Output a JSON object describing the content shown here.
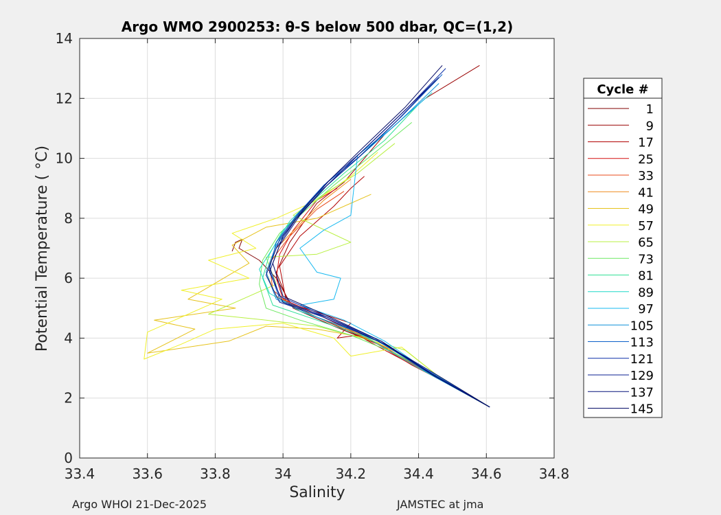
{
  "footer": {
    "left": "Argo WHOI 21-Dec-2025",
    "right": "JAMSTEC at jma"
  },
  "colors": {
    "background": "#f0f0f0",
    "axes_background": "#ffffff",
    "grid": "#dddddd",
    "axis": "#262626"
  },
  "chart_data": {
    "type": "line",
    "title": "Argo WMO 2900253: θ-S below 500 dbar,  QC=(1,2)",
    "xlabel": "Salinity",
    "ylabel": "Potential Temperature ( °C)",
    "xlim": [
      33.4,
      34.8
    ],
    "ylim": [
      0,
      14
    ],
    "xticks": [
      "33.4",
      "33.6",
      "33.8",
      "34",
      "34.2",
      "34.4",
      "34.6",
      "34.8"
    ],
    "yticks": [
      "0",
      "2",
      "4",
      "6",
      "8",
      "10",
      "12",
      "14"
    ],
    "grid": true,
    "legend": {
      "title": "Cycle #",
      "placement": "right-outside",
      "entries": [
        {
          "name": "1",
          "color": "#800000"
        },
        {
          "name": "9",
          "color": "#990000"
        },
        {
          "name": "17",
          "color": "#b20000"
        },
        {
          "name": "25",
          "color": "#d40f0f"
        },
        {
          "name": "33",
          "color": "#e84a1a"
        },
        {
          "name": "41",
          "color": "#ef8a1a"
        },
        {
          "name": "49",
          "color": "#e6c21a"
        },
        {
          "name": "57",
          "color": "#f0f02a"
        },
        {
          "name": "65",
          "color": "#b8f040"
        },
        {
          "name": "73",
          "color": "#6ce860"
        },
        {
          "name": "81",
          "color": "#2fe096"
        },
        {
          "name": "89",
          "color": "#1fd8c8"
        },
        {
          "name": "97",
          "color": "#16b8f0"
        },
        {
          "name": "105",
          "color": "#0a8fd8"
        },
        {
          "name": "113",
          "color": "#0a5fc8"
        },
        {
          "name": "121",
          "color": "#0a2fa8"
        },
        {
          "name": "129",
          "color": "#081c90"
        },
        {
          "name": "137",
          "color": "#06107a"
        },
        {
          "name": "145",
          "color": "#040a66"
        }
      ]
    },
    "series": [
      {
        "cycle": "1",
        "color": "#800000",
        "points": [
          [
            33.85,
            6.9
          ],
          [
            33.86,
            7.2
          ],
          [
            33.88,
            7.3
          ],
          [
            33.87,
            7.0
          ],
          [
            33.93,
            6.6
          ],
          [
            33.98,
            6.0
          ],
          [
            34.03,
            5.0
          ],
          [
            34.15,
            4.4
          ],
          [
            34.28,
            3.8
          ],
          [
            34.4,
            3.0
          ],
          [
            34.5,
            2.4
          ],
          [
            34.61,
            1.7
          ]
        ]
      },
      {
        "cycle": "9",
        "color": "#990000",
        "points": [
          [
            34.58,
            13.1
          ],
          [
            34.42,
            12.0
          ],
          [
            34.3,
            10.8
          ],
          [
            34.18,
            9.2
          ],
          [
            34.1,
            8.5
          ],
          [
            34.02,
            7.2
          ],
          [
            33.98,
            6.2
          ],
          [
            34.02,
            5.1
          ],
          [
            34.18,
            4.3
          ],
          [
            34.3,
            3.7
          ],
          [
            34.42,
            2.9
          ],
          [
            34.61,
            1.7
          ]
        ]
      },
      {
        "cycle": "17",
        "color": "#b20000",
        "points": [
          [
            34.24,
            9.4
          ],
          [
            34.2,
            9.0
          ],
          [
            34.15,
            8.4
          ],
          [
            34.05,
            7.4
          ],
          [
            33.99,
            6.4
          ],
          [
            34.01,
            5.2
          ],
          [
            34.2,
            4.5
          ],
          [
            34.16,
            4.0
          ],
          [
            34.22,
            4.1
          ],
          [
            34.3,
            3.6
          ],
          [
            34.45,
            2.7
          ],
          [
            34.61,
            1.7
          ]
        ]
      },
      {
        "cycle": "25",
        "color": "#d40f0f",
        "points": [
          [
            34.16,
            9.0
          ],
          [
            34.1,
            8.6
          ],
          [
            34.03,
            7.6
          ],
          [
            33.99,
            6.8
          ],
          [
            33.98,
            6.0
          ],
          [
            34.0,
            5.3
          ],
          [
            34.1,
            4.8
          ],
          [
            34.25,
            4.0
          ],
          [
            34.38,
            3.1
          ],
          [
            34.5,
            2.4
          ],
          [
            34.61,
            1.7
          ]
        ]
      },
      {
        "cycle": "33",
        "color": "#e84a1a",
        "points": [
          [
            34.18,
            8.9
          ],
          [
            34.1,
            8.3
          ],
          [
            34.02,
            7.4
          ],
          [
            33.96,
            6.5
          ],
          [
            33.97,
            5.6
          ],
          [
            34.05,
            4.9
          ],
          [
            34.15,
            4.5
          ],
          [
            34.3,
            3.7
          ],
          [
            34.45,
            2.7
          ],
          [
            34.61,
            1.7
          ]
        ]
      },
      {
        "cycle": "41",
        "color": "#ef8a1a",
        "points": [
          [
            34.2,
            9.3
          ],
          [
            34.12,
            8.6
          ],
          [
            34.05,
            7.8
          ],
          [
            33.98,
            7.0
          ],
          [
            33.95,
            6.2
          ],
          [
            33.98,
            5.4
          ],
          [
            34.1,
            4.7
          ],
          [
            34.28,
            3.9
          ],
          [
            34.44,
            2.8
          ],
          [
            34.61,
            1.7
          ]
        ]
      },
      {
        "cycle": "49",
        "color": "#e6c21a",
        "points": [
          [
            34.26,
            8.8
          ],
          [
            34.1,
            8.0
          ],
          [
            33.95,
            7.7
          ],
          [
            33.85,
            7.1
          ],
          [
            33.9,
            6.5
          ],
          [
            33.72,
            5.3
          ],
          [
            33.86,
            5.0
          ],
          [
            33.62,
            4.6
          ],
          [
            33.74,
            4.3
          ],
          [
            33.6,
            3.5
          ],
          [
            33.84,
            3.9
          ],
          [
            33.95,
            4.4
          ],
          [
            34.1,
            4.3
          ],
          [
            34.25,
            4.0
          ],
          [
            34.34,
            3.5
          ],
          [
            34.45,
            2.7
          ],
          [
            34.61,
            1.7
          ]
        ]
      },
      {
        "cycle": "57",
        "color": "#f0f02a",
        "points": [
          [
            34.28,
            10.2
          ],
          [
            34.2,
            9.4
          ],
          [
            34.1,
            8.6
          ],
          [
            33.98,
            8.0
          ],
          [
            33.85,
            7.5
          ],
          [
            33.92,
            7.0
          ],
          [
            33.78,
            6.6
          ],
          [
            33.9,
            6.0
          ],
          [
            33.7,
            5.6
          ],
          [
            33.82,
            5.3
          ],
          [
            33.6,
            4.2
          ],
          [
            33.59,
            3.3
          ],
          [
            33.7,
            3.8
          ],
          [
            33.8,
            4.3
          ],
          [
            34.0,
            4.5
          ],
          [
            34.15,
            4.0
          ],
          [
            34.2,
            3.4
          ],
          [
            34.35,
            3.7
          ],
          [
            34.45,
            2.8
          ],
          [
            34.61,
            1.7
          ]
        ]
      },
      {
        "cycle": "65",
        "color": "#b8f040",
        "points": [
          [
            34.33,
            10.5
          ],
          [
            34.22,
            9.5
          ],
          [
            34.12,
            8.8
          ],
          [
            34.03,
            8.1
          ],
          [
            34.2,
            7.2
          ],
          [
            34.1,
            6.8
          ],
          [
            33.95,
            6.7
          ],
          [
            33.98,
            5.8
          ],
          [
            33.9,
            5.4
          ],
          [
            33.78,
            4.8
          ],
          [
            33.95,
            4.6
          ],
          [
            34.1,
            4.4
          ],
          [
            34.3,
            3.8
          ],
          [
            34.36,
            3.6
          ],
          [
            34.45,
            2.8
          ],
          [
            34.61,
            1.7
          ]
        ]
      },
      {
        "cycle": "73",
        "color": "#6ce860",
        "points": [
          [
            34.38,
            11.2
          ],
          [
            34.25,
            10.0
          ],
          [
            34.15,
            9.1
          ],
          [
            34.06,
            8.2
          ],
          [
            33.99,
            7.5
          ],
          [
            33.94,
            6.6
          ],
          [
            33.93,
            5.8
          ],
          [
            33.95,
            5.0
          ],
          [
            34.05,
            4.6
          ],
          [
            34.2,
            4.1
          ],
          [
            34.33,
            3.5
          ],
          [
            34.46,
            2.7
          ],
          [
            34.61,
            1.7
          ]
        ]
      },
      {
        "cycle": "81",
        "color": "#2fe096",
        "points": [
          [
            34.4,
            11.8
          ],
          [
            34.3,
            10.6
          ],
          [
            34.18,
            9.5
          ],
          [
            34.08,
            8.5
          ],
          [
            34.0,
            7.6
          ],
          [
            33.96,
            6.8
          ],
          [
            33.94,
            6.0
          ],
          [
            33.97,
            5.1
          ],
          [
            34.1,
            4.6
          ],
          [
            34.28,
            3.9
          ],
          [
            34.44,
            2.8
          ],
          [
            34.61,
            1.7
          ]
        ]
      },
      {
        "cycle": "89",
        "color": "#1fd8c8",
        "points": [
          [
            34.44,
            12.2
          ],
          [
            34.32,
            11.0
          ],
          [
            34.2,
            9.8
          ],
          [
            34.1,
            8.8
          ],
          [
            34.02,
            7.9
          ],
          [
            33.97,
            7.0
          ],
          [
            33.93,
            6.3
          ],
          [
            33.96,
            5.5
          ],
          [
            34.05,
            4.9
          ],
          [
            34.22,
            4.2
          ],
          [
            34.4,
            3.0
          ],
          [
            34.61,
            1.7
          ]
        ]
      },
      {
        "cycle": "97",
        "color": "#16b8f0",
        "points": [
          [
            34.42,
            12.0
          ],
          [
            34.32,
            11.0
          ],
          [
            34.22,
            10.1
          ],
          [
            34.2,
            8.1
          ],
          [
            34.12,
            7.6
          ],
          [
            34.05,
            7.0
          ],
          [
            34.1,
            6.2
          ],
          [
            34.17,
            6.0
          ],
          [
            34.15,
            5.3
          ],
          [
            34.05,
            5.1
          ],
          [
            34.18,
            4.6
          ],
          [
            34.3,
            3.9
          ],
          [
            34.44,
            2.8
          ],
          [
            34.61,
            1.7
          ]
        ]
      },
      {
        "cycle": "105",
        "color": "#0a8fd8",
        "points": [
          [
            34.46,
            12.5
          ],
          [
            34.34,
            11.2
          ],
          [
            34.22,
            10.0
          ],
          [
            34.12,
            9.0
          ],
          [
            34.04,
            8.0
          ],
          [
            33.98,
            7.1
          ],
          [
            33.95,
            6.2
          ],
          [
            33.98,
            5.3
          ],
          [
            34.1,
            4.7
          ],
          [
            34.27,
            4.0
          ],
          [
            34.42,
            2.9
          ],
          [
            34.61,
            1.7
          ]
        ]
      },
      {
        "cycle": "113",
        "color": "#0a5fc8",
        "points": [
          [
            34.47,
            12.8
          ],
          [
            34.35,
            11.4
          ],
          [
            34.23,
            10.1
          ],
          [
            34.12,
            9.1
          ],
          [
            34.04,
            8.1
          ],
          [
            33.98,
            7.2
          ],
          [
            33.96,
            6.3
          ],
          [
            33.99,
            5.3
          ],
          [
            34.1,
            4.8
          ],
          [
            34.28,
            3.9
          ],
          [
            34.43,
            2.9
          ],
          [
            34.61,
            1.7
          ]
        ]
      },
      {
        "cycle": "121",
        "color": "#0a2fa8",
        "points": [
          [
            34.48,
            13.0
          ],
          [
            34.36,
            11.6
          ],
          [
            34.24,
            10.3
          ],
          [
            34.13,
            9.2
          ],
          [
            34.05,
            8.2
          ],
          [
            33.99,
            7.3
          ],
          [
            33.96,
            6.4
          ],
          [
            33.99,
            5.4
          ],
          [
            34.11,
            4.8
          ],
          [
            34.29,
            3.9
          ],
          [
            34.44,
            2.8
          ],
          [
            34.61,
            1.7
          ]
        ]
      },
      {
        "cycle": "129",
        "color": "#081c90",
        "points": [
          [
            34.45,
            12.6
          ],
          [
            34.34,
            11.3
          ],
          [
            34.22,
            10.0
          ],
          [
            34.12,
            9.0
          ],
          [
            34.04,
            8.0
          ],
          [
            33.98,
            7.0
          ],
          [
            33.95,
            6.1
          ],
          [
            33.99,
            5.2
          ],
          [
            34.12,
            4.7
          ],
          [
            34.3,
            3.8
          ],
          [
            34.45,
            2.7
          ],
          [
            34.61,
            1.7
          ]
        ]
      },
      {
        "cycle": "137",
        "color": "#06107a",
        "points": [
          [
            34.46,
            12.7
          ],
          [
            34.35,
            11.5
          ],
          [
            34.23,
            10.2
          ],
          [
            34.13,
            9.1
          ],
          [
            34.05,
            8.1
          ],
          [
            33.99,
            7.1
          ],
          [
            33.96,
            6.2
          ],
          [
            34.0,
            5.2
          ],
          [
            34.13,
            4.7
          ],
          [
            34.3,
            3.8
          ],
          [
            34.45,
            2.8
          ],
          [
            34.61,
            1.7
          ]
        ]
      },
      {
        "cycle": "145",
        "color": "#040a66",
        "points": [
          [
            34.47,
            13.1
          ],
          [
            34.36,
            11.7
          ],
          [
            34.24,
            10.4
          ],
          [
            34.14,
            9.3
          ],
          [
            34.06,
            8.3
          ],
          [
            34.0,
            7.4
          ],
          [
            33.97,
            6.5
          ],
          [
            34.0,
            5.4
          ],
          [
            34.12,
            4.8
          ],
          [
            34.29,
            3.9
          ],
          [
            34.44,
            2.8
          ],
          [
            34.61,
            1.7
          ]
        ]
      }
    ]
  }
}
